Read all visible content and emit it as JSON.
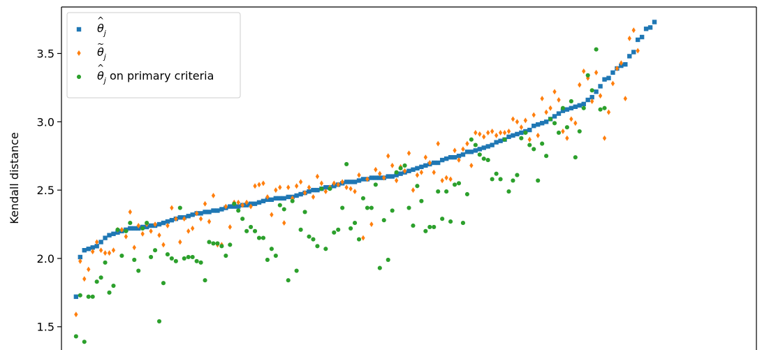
{
  "chart_data": {
    "type": "scatter",
    "ylabel": "Kendall distance",
    "yticks": [
      1.5,
      2.0,
      2.5,
      3.0,
      3.5
    ],
    "ylim": [
      1.33,
      3.84
    ],
    "xlim": [
      -3.5,
      163.5
    ],
    "grid": false,
    "legend_position": "top-left",
    "colors": {
      "theta_hat": "#1f77b4",
      "theta_tilde": "#ff7f0e",
      "theta_primary": "#2ca02c"
    },
    "series": [
      {
        "name": "$\\hat{\\theta}_j$",
        "display": {
          "base": "θ",
          "accent": "^",
          "sub": "j",
          "suffix": ""
        },
        "marker": "square",
        "color": "#1f77b4",
        "values": [
          1.72,
          2.01,
          2.06,
          2.07,
          2.08,
          2.09,
          2.12,
          2.15,
          2.17,
          2.18,
          2.19,
          2.2,
          2.21,
          2.22,
          2.22,
          2.22,
          2.23,
          2.23,
          2.24,
          2.24,
          2.25,
          2.26,
          2.27,
          2.28,
          2.29,
          2.3,
          2.3,
          2.31,
          2.32,
          2.33,
          2.33,
          2.34,
          2.34,
          2.35,
          2.35,
          2.36,
          2.37,
          2.38,
          2.38,
          2.38,
          2.39,
          2.39,
          2.4,
          2.4,
          2.41,
          2.42,
          2.43,
          2.43,
          2.44,
          2.44,
          2.44,
          2.45,
          2.45,
          2.46,
          2.47,
          2.48,
          2.49,
          2.5,
          2.5,
          2.51,
          2.52,
          2.52,
          2.53,
          2.54,
          2.55,
          2.56,
          2.56,
          2.56,
          2.57,
          2.58,
          2.58,
          2.59,
          2.59,
          2.59,
          2.59,
          2.6,
          2.6,
          2.61,
          2.62,
          2.63,
          2.64,
          2.65,
          2.66,
          2.67,
          2.68,
          2.69,
          2.7,
          2.7,
          2.72,
          2.73,
          2.74,
          2.74,
          2.75,
          2.76,
          2.78,
          2.78,
          2.79,
          2.8,
          2.81,
          2.82,
          2.83,
          2.85,
          2.86,
          2.87,
          2.89,
          2.9,
          2.91,
          2.92,
          2.93,
          2.94,
          2.97,
          2.98,
          2.99,
          3.0,
          3.02,
          3.04,
          3.06,
          3.08,
          3.09,
          3.1,
          3.11,
          3.12,
          3.13,
          3.16,
          3.18,
          3.22,
          3.26,
          3.31,
          3.32,
          3.36,
          3.39,
          3.41,
          3.42,
          3.48,
          3.51,
          3.6,
          3.62,
          3.68,
          3.69,
          3.73
        ]
      },
      {
        "name": "$\\tilde{\\theta}_j$",
        "display": {
          "base": "θ",
          "accent": "~",
          "sub": "j",
          "suffix": ""
        },
        "marker": "diamond",
        "color": "#ff7f0e",
        "values": [
          1.59,
          1.98,
          1.85,
          1.92,
          2.05,
          2.12,
          2.06,
          2.04,
          2.04,
          2.06,
          2.21,
          2.21,
          2.16,
          2.34,
          2.08,
          2.24,
          2.18,
          2.25,
          2.2,
          2.25,
          2.17,
          2.1,
          2.24,
          2.37,
          2.29,
          2.12,
          2.29,
          2.2,
          2.22,
          2.33,
          2.29,
          2.4,
          2.27,
          2.46,
          2.1,
          2.1,
          2.38,
          2.23,
          2.41,
          2.41,
          2.39,
          2.41,
          2.38,
          2.53,
          2.54,
          2.55,
          2.45,
          2.32,
          2.5,
          2.52,
          2.26,
          2.52,
          2.44,
          2.53,
          2.56,
          2.48,
          2.52,
          2.45,
          2.6,
          2.55,
          2.49,
          2.52,
          2.55,
          2.54,
          2.56,
          2.52,
          2.51,
          2.49,
          2.61,
          2.15,
          2.58,
          2.25,
          2.65,
          2.62,
          2.59,
          2.75,
          2.68,
          2.57,
          2.67,
          2.64,
          2.77,
          2.5,
          2.61,
          2.63,
          2.74,
          2.7,
          2.63,
          2.84,
          2.57,
          2.59,
          2.58,
          2.79,
          2.72,
          2.8,
          2.84,
          2.68,
          2.92,
          2.91,
          2.89,
          2.92,
          2.93,
          2.9,
          2.92,
          2.92,
          2.93,
          3.02,
          3.0,
          2.96,
          3.01,
          2.87,
          3.05,
          2.9,
          3.17,
          3.07,
          3.1,
          3.22,
          3.16,
          2.93,
          2.88,
          3.02,
          2.99,
          3.27,
          3.37,
          3.32,
          3.15,
          3.36,
          3.19,
          2.88,
          3.07,
          3.28,
          3.39,
          3.43,
          3.17,
          3.61,
          3.67,
          3.52
        ]
      },
      {
        "name": "$\\hat{\\theta}_j$ on primary criteria",
        "display": {
          "base": "θ",
          "accent": "^",
          "sub": "j",
          "suffix": " on primary criteria"
        },
        "marker": "circle",
        "color": "#2ca02c",
        "values": [
          1.43,
          1.73,
          1.39,
          1.72,
          1.72,
          1.83,
          1.86,
          1.97,
          1.75,
          1.8,
          2.21,
          2.02,
          2.2,
          2.26,
          1.99,
          1.91,
          2.22,
          2.26,
          2.01,
          2.06,
          1.54,
          1.82,
          2.03,
          2.0,
          1.98,
          2.37,
          2.0,
          2.01,
          2.01,
          1.98,
          1.97,
          1.84,
          2.12,
          2.11,
          2.11,
          2.09,
          2.02,
          2.1,
          2.4,
          2.35,
          2.29,
          2.2,
          2.23,
          2.2,
          2.15,
          2.15,
          1.99,
          2.07,
          2.02,
          2.39,
          2.36,
          1.84,
          2.42,
          1.91,
          2.21,
          2.34,
          2.16,
          2.14,
          2.09,
          2.51,
          2.07,
          2.51,
          2.19,
          2.21,
          2.37,
          2.69,
          2.22,
          2.26,
          2.14,
          2.44,
          2.37,
          2.37,
          2.54,
          1.93,
          2.28,
          1.99,
          2.35,
          2.63,
          2.66,
          2.68,
          2.37,
          2.24,
          2.53,
          2.42,
          2.2,
          2.23,
          2.23,
          2.49,
          2.29,
          2.49,
          2.27,
          2.54,
          2.55,
          2.26,
          2.47,
          2.87,
          2.83,
          2.76,
          2.73,
          2.72,
          2.58,
          2.62,
          2.58,
          2.87,
          2.49,
          2.57,
          2.61,
          2.88,
          2.92,
          2.83,
          2.8,
          2.57,
          2.84,
          2.75,
          3.02,
          2.99,
          2.92,
          3.1,
          2.96,
          3.15,
          2.74,
          2.93,
          3.1,
          3.34,
          3.23,
          3.53,
          3.09,
          3.1
        ]
      }
    ]
  }
}
